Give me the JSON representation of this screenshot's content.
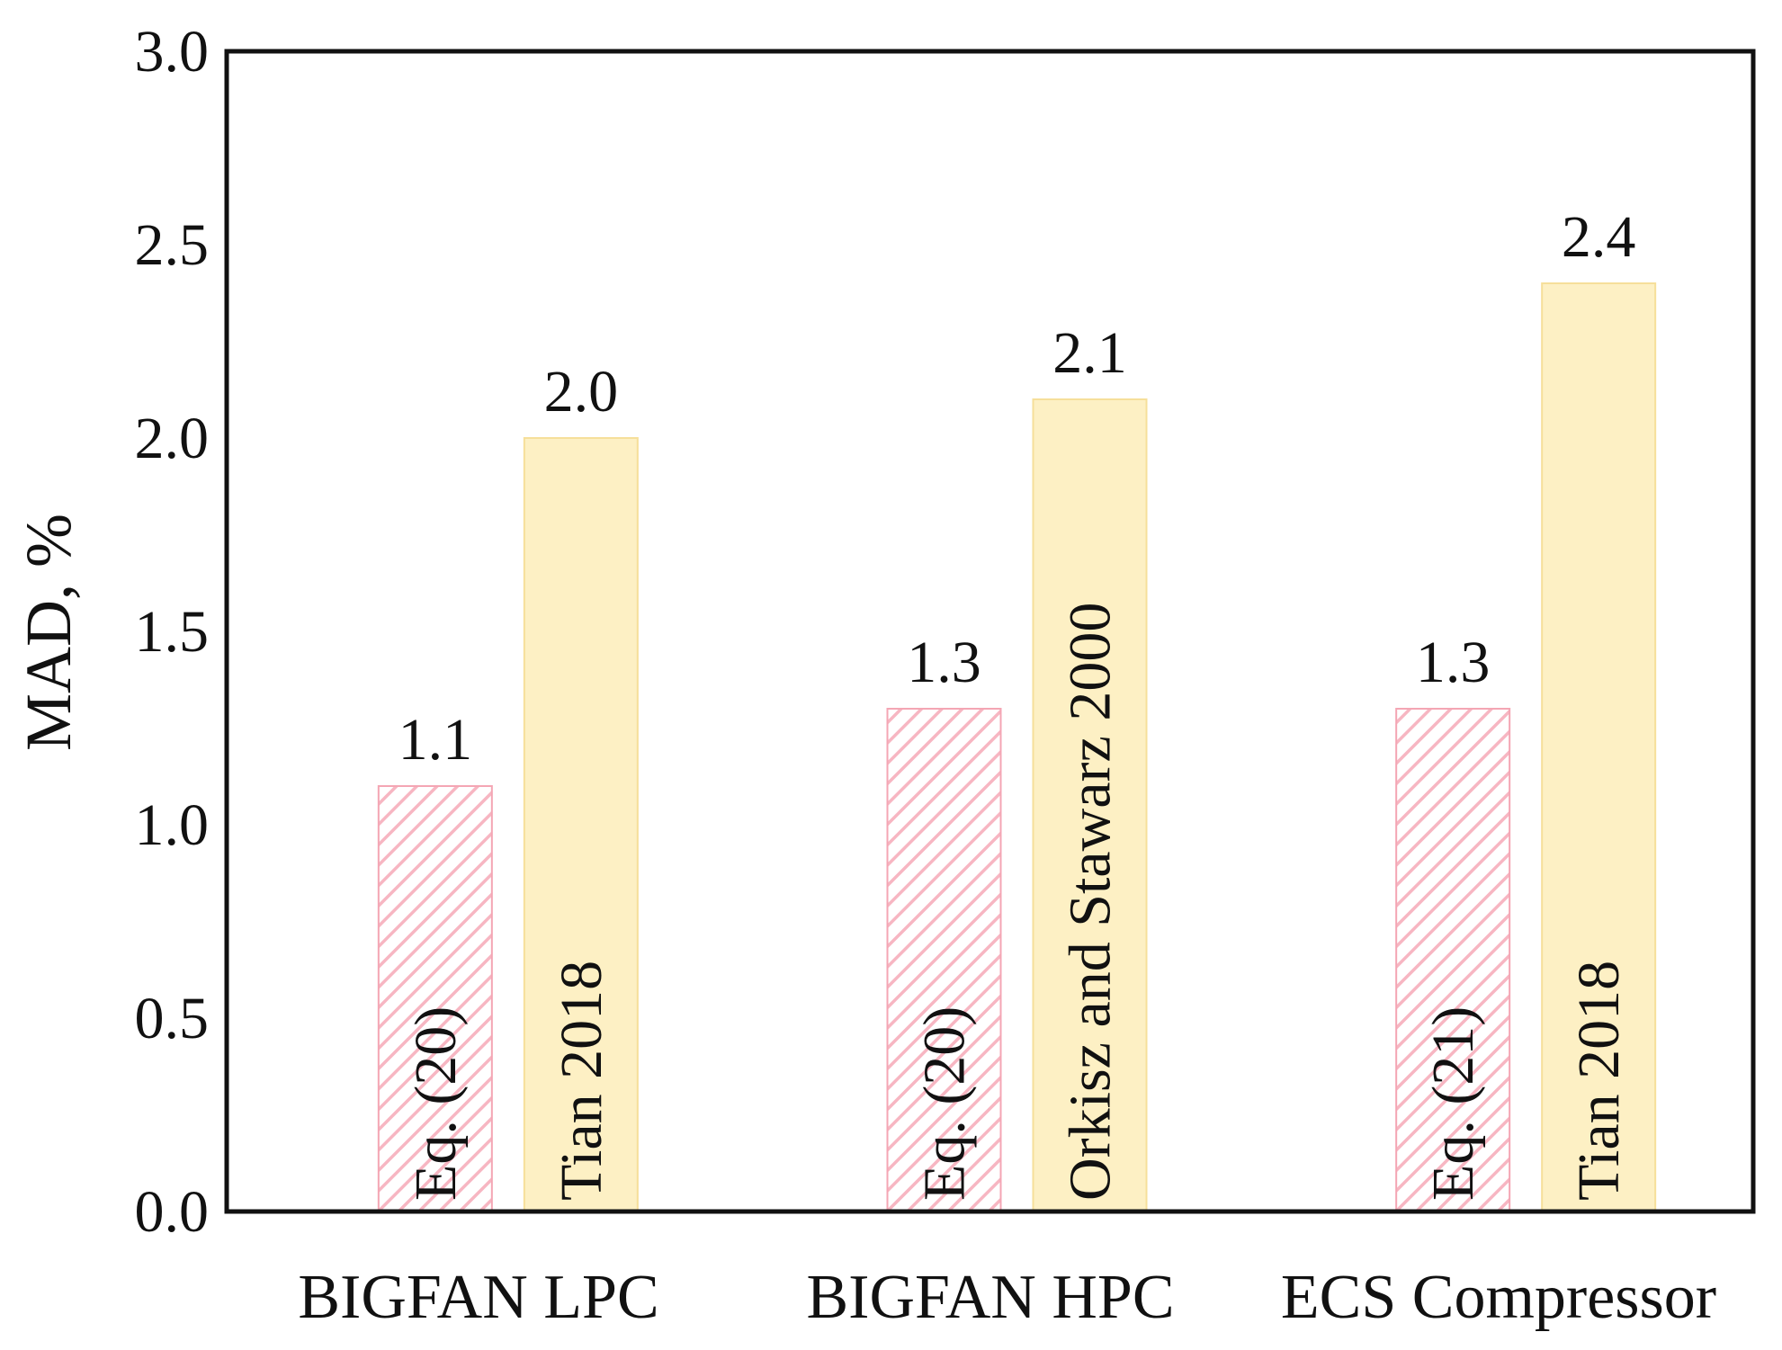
{
  "chart_data": {
    "type": "bar",
    "categories": [
      "BIGFAN LPC",
      "BIGFAN HPC",
      "ECS Compressor"
    ],
    "bars": [
      {
        "category": "BIGFAN LPC",
        "label": "Eq. (20)",
        "value": 1.1,
        "value_label": "1.1",
        "style": "hatched"
      },
      {
        "category": "BIGFAN LPC",
        "label": "Tian  2018",
        "value": 2.0,
        "value_label": "2.0",
        "style": "solid"
      },
      {
        "category": "BIGFAN HPC",
        "label": "Eq. (20)",
        "value": 1.3,
        "value_label": "1.3",
        "style": "hatched"
      },
      {
        "category": "BIGFAN HPC",
        "label": "Orkisz and Stawarz 2000",
        "value": 2.1,
        "value_label": "2.1",
        "style": "solid"
      },
      {
        "category": "ECS Compressor",
        "label": "Eq. (21)",
        "value": 1.3,
        "value_label": "1.3",
        "style": "hatched"
      },
      {
        "category": "ECS Compressor",
        "label": "Tian  2018",
        "value": 2.4,
        "value_label": "2.4",
        "style": "solid"
      }
    ],
    "ylabel": "MAD, %",
    "ylim": [
      0,
      3.0
    ],
    "yticks": [
      "0.0",
      "0.5",
      "1.0",
      "1.5",
      "2.0",
      "2.5",
      "3.0"
    ],
    "grid": false,
    "colors": {
      "hatched_stroke": "#f7b6c2",
      "hatched_edge": "#f4a6b4",
      "solid_fill": "#fdf0c4",
      "solid_edge": "#f6df9a",
      "axis": "#111111"
    }
  }
}
